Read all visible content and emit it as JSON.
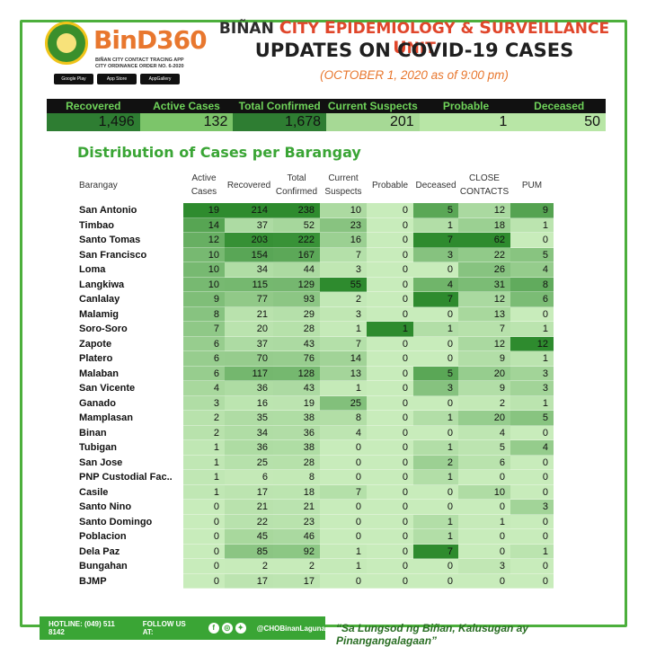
{
  "brand": {
    "logo_text": "BinD360",
    "logo_sub": "BIÑAN CITY CONTACT TRACING APP CITY ORDINANCE ORDER NO. 6-2020",
    "stores": [
      "Google Play",
      "App Store",
      "AppGallery"
    ]
  },
  "header": {
    "title_prefix": "BIÑAN ",
    "title_c1": "C",
    "title_c1_rest": "ITY ",
    "title_e": "E",
    "title_e_rest": "PIDEMIOLOGY & ",
    "title_s": "S",
    "title_s_rest": "URVEILLANCE ",
    "title_u": "U",
    "title_u_rest": "NIT",
    "title2": "UPDATES ON COVID-19 CASES",
    "date": "(OCTOBER 1, 2020 as of 9:00 pm)"
  },
  "summary": {
    "headers": [
      "Recovered",
      "Active Cases",
      "Total Confirmed",
      "Current Suspects",
      "Probable",
      "Deceased"
    ],
    "values": [
      "1,496",
      "132",
      "1,678",
      "201",
      "1",
      "50"
    ],
    "colors": [
      "#2e7d32",
      "#7cc56a",
      "#2e7d32",
      "#a6d995",
      "#b8e6a6",
      "#b8e6a6"
    ]
  },
  "distribution_title": "Distribution of Cases per Barangay",
  "table": {
    "headers": [
      "Barangay",
      "Active Cases",
      "Recovered",
      "Total Confirmed",
      "Current Suspects",
      "Probable",
      "Deceased",
      "CLOSE CONTACTS",
      "PUM"
    ],
    "rows": [
      [
        "San Antonio",
        "19",
        "214",
        "238",
        "10",
        "0",
        "5",
        "12",
        "9"
      ],
      [
        "Timbao",
        "14",
        "37",
        "52",
        "23",
        "0",
        "1",
        "18",
        "1"
      ],
      [
        "Santo Tomas",
        "12",
        "203",
        "222",
        "16",
        "0",
        "7",
        "62",
        "0"
      ],
      [
        "San Francisco",
        "10",
        "154",
        "167",
        "7",
        "0",
        "3",
        "22",
        "5"
      ],
      [
        "Loma",
        "10",
        "34",
        "44",
        "3",
        "0",
        "0",
        "26",
        "4"
      ],
      [
        "Langkiwa",
        "10",
        "115",
        "129",
        "55",
        "0",
        "4",
        "31",
        "8"
      ],
      [
        "Canlalay",
        "9",
        "77",
        "93",
        "2",
        "0",
        "7",
        "12",
        "6"
      ],
      [
        "Malamig",
        "8",
        "21",
        "29",
        "3",
        "0",
        "0",
        "13",
        "0"
      ],
      [
        "Soro-Soro",
        "7",
        "20",
        "28",
        "1",
        "1",
        "1",
        "7",
        "1"
      ],
      [
        "Zapote",
        "6",
        "37",
        "43",
        "7",
        "0",
        "0",
        "12",
        "12"
      ],
      [
        "Platero",
        "6",
        "70",
        "76",
        "14",
        "0",
        "0",
        "9",
        "1"
      ],
      [
        "Malaban",
        "6",
        "117",
        "128",
        "13",
        "0",
        "5",
        "20",
        "3"
      ],
      [
        "San Vicente",
        "4",
        "36",
        "43",
        "1",
        "0",
        "3",
        "9",
        "3"
      ],
      [
        "Ganado",
        "3",
        "16",
        "19",
        "25",
        "0",
        "0",
        "2",
        "1"
      ],
      [
        "Mamplasan",
        "2",
        "35",
        "38",
        "8",
        "0",
        "1",
        "20",
        "5"
      ],
      [
        "Binan",
        "2",
        "34",
        "36",
        "4",
        "0",
        "0",
        "4",
        "0"
      ],
      [
        "Tubigan",
        "1",
        "36",
        "38",
        "0",
        "0",
        "1",
        "5",
        "4"
      ],
      [
        "San Jose",
        "1",
        "25",
        "28",
        "0",
        "0",
        "2",
        "6",
        "0"
      ],
      [
        "PNP Custodial Fac..",
        "1",
        "6",
        "8",
        "0",
        "0",
        "1",
        "0",
        "0"
      ],
      [
        "Casile",
        "1",
        "17",
        "18",
        "7",
        "0",
        "0",
        "10",
        "0"
      ],
      [
        "Santo Nino",
        "0",
        "21",
        "21",
        "0",
        "0",
        "0",
        "0",
        "3"
      ],
      [
        "Santo Domingo",
        "0",
        "22",
        "23",
        "0",
        "0",
        "1",
        "1",
        "0"
      ],
      [
        "Poblacion",
        "0",
        "45",
        "46",
        "0",
        "0",
        "1",
        "0",
        "0"
      ],
      [
        "Dela Paz",
        "0",
        "85",
        "92",
        "1",
        "0",
        "7",
        "0",
        "1"
      ],
      [
        "Bungahan",
        "0",
        "2",
        "2",
        "1",
        "0",
        "0",
        "3",
        "0"
      ],
      [
        "BJMP",
        "0",
        "17",
        "17",
        "0",
        "0",
        "0",
        "0",
        "0"
      ]
    ]
  },
  "footer": {
    "hotline": "HOTLINE: (049) 511 8142",
    "follow": "FOLLOW US AT:",
    "handle": "@CHOBinanLaguna",
    "motto": "“Sa Lungsod ng Biñan, Kalusugan ay Pinangangalagaan”"
  }
}
